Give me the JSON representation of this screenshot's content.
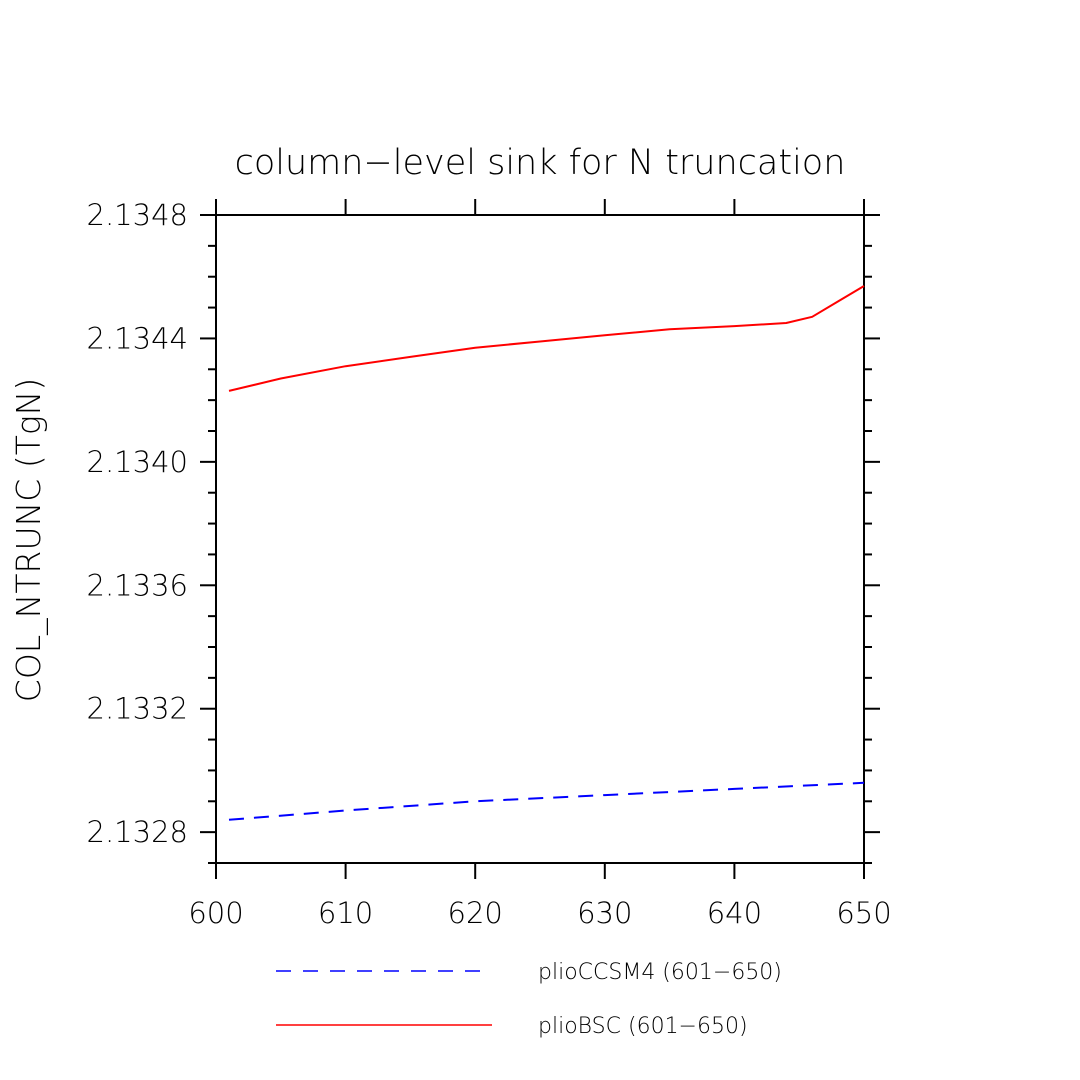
{
  "chart_data": {
    "type": "line",
    "title": "column−level sink for N truncation",
    "xlabel": "",
    "ylabel": "COL_NTRUNC  (TgN)",
    "xlim": [
      600,
      650
    ],
    "ylim": [
      2.1327,
      2.1348
    ],
    "x_ticks": [
      600,
      610,
      620,
      630,
      640,
      650
    ],
    "x_tick_labels": [
      "600",
      "610",
      "620",
      "630",
      "640",
      "650"
    ],
    "y_ticks": [
      2.1328,
      2.1332,
      2.1336,
      2.134,
      2.1344,
      2.1348
    ],
    "y_tick_labels": [
      "2.1328",
      "2.1332",
      "2.1336",
      "2.1340",
      "2.1344",
      "2.1348"
    ],
    "grid": false,
    "legend_position": "bottom",
    "series": [
      {
        "name": "plioCCSM4 (601−650)",
        "color": "#0000ff",
        "style": "dashed",
        "x": [
          601,
          610,
          620,
          630,
          640,
          650
        ],
        "y": [
          2.13284,
          2.13287,
          2.1329,
          2.13292,
          2.13294,
          2.13296
        ]
      },
      {
        "name": "plioBSC (601−650)",
        "color": "#ff0000",
        "style": "solid",
        "x": [
          601,
          605,
          610,
          615,
          620,
          625,
          630,
          635,
          640,
          644,
          646,
          648,
          650
        ],
        "y": [
          2.13423,
          2.13427,
          2.13431,
          2.13434,
          2.13437,
          2.13439,
          2.13441,
          2.13443,
          2.13444,
          2.13445,
          2.13447,
          2.13452,
          2.13457
        ]
      }
    ]
  }
}
